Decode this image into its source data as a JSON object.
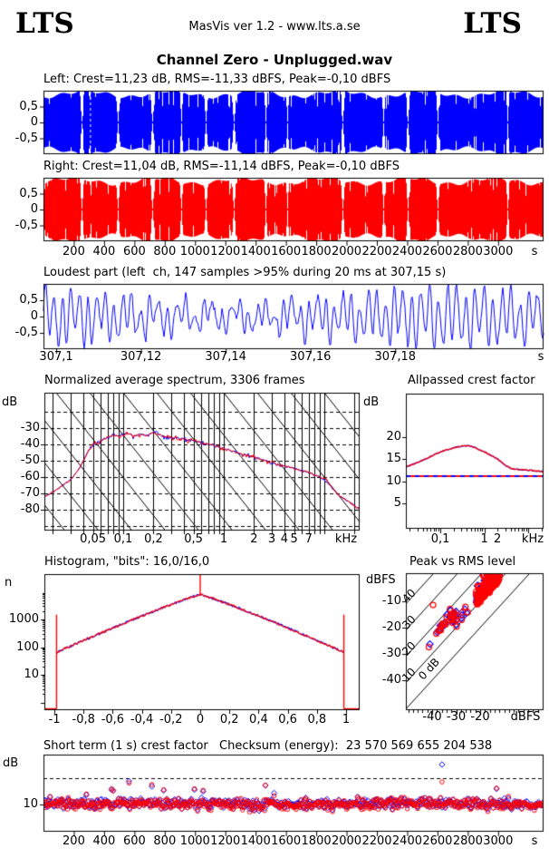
{
  "header": {
    "logo_left": "LTS",
    "logo_right": "LTS",
    "center_text": "MasVis ver 1.2 - www.lts.a.se"
  },
  "title": "Channel Zero - Unplugged.wav",
  "colors": {
    "left_channel": "#0000ff",
    "right_channel": "#ff0000",
    "axis": "#000000",
    "background": "#ffffff"
  },
  "panels": {
    "wave_left": {
      "title": "Left: Crest=11,23 dB, RMS=-11,33 dBFS, Peak=-0,10 dBFS",
      "yticks": [
        0.5,
        0,
        -0.5
      ],
      "ytick_labels": [
        "0,5",
        "0",
        "-0,5"
      ]
    },
    "wave_right": {
      "title": "Right: Crest=11,04 dB, RMS=-11,14 dBFS, Peak=-0,10 dBFS",
      "yticks": [
        0.5,
        0,
        -0.5
      ],
      "ytick_labels": [
        "0,5",
        "0",
        "-0,5"
      ]
    },
    "time_axis": {
      "ticks": [
        200,
        400,
        600,
        800,
        1000,
        1200,
        1400,
        1600,
        1800,
        2000,
        2200,
        2400,
        2600,
        2800,
        3000
      ],
      "tick_labels": [
        "200",
        "400",
        "600",
        "800",
        "1000",
        "1200",
        "1400",
        "1600",
        "1800",
        "2000",
        "2200",
        "2400",
        "2600",
        "2800",
        "3000"
      ],
      "unit": "s"
    },
    "loudest": {
      "title": "Loudest part (left  ch, 147 samples >95% during 20 ms at 307,15 s)",
      "xticks": [
        307.1,
        307.12,
        307.14,
        307.16,
        307.18
      ],
      "xtick_labels": [
        "307,1",
        "307,12",
        "307,14",
        "307,16",
        "307,18"
      ],
      "unit": "s",
      "yticks": [
        0.5,
        0,
        -0.5
      ],
      "ytick_labels": [
        "0,5",
        "0",
        "-0,5"
      ]
    },
    "spectrum": {
      "title": "Normalized average spectrum, 3306 frames",
      "ylabel": "dB",
      "yticks": [
        -30,
        -40,
        -50,
        -60,
        -70,
        -80
      ],
      "ytick_labels": [
        "-30",
        "-40",
        "-50",
        "-60",
        "-70",
        "-80"
      ],
      "xticks": [
        0.05,
        0.1,
        0.2,
        0.5,
        1,
        2,
        3,
        4,
        5,
        7
      ],
      "xtick_labels": [
        "0,05",
        "0,1",
        "0,2",
        "0,5",
        "1",
        "2",
        "3",
        "4",
        "5",
        "7"
      ],
      "unit": "kHz"
    },
    "allpassed": {
      "title": "Allpassed crest factor",
      "ylabel": "dB",
      "yticks": [
        20,
        15,
        10,
        5
      ],
      "ytick_labels": [
        "20",
        "15",
        "10",
        "5"
      ],
      "xticks": [
        0.1,
        1,
        2
      ],
      "xtick_labels": [
        "0,1",
        "1",
        "2"
      ],
      "unit": "kHz"
    },
    "histogram": {
      "title": "Histogram, \"bits\": 16,0/16,0",
      "ylabel": "n",
      "yticks": [
        1000,
        100,
        10
      ],
      "ytick_labels": [
        "1000",
        "100",
        "10"
      ],
      "xticks": [
        -1,
        -0.8,
        -0.6,
        -0.4,
        -0.2,
        0,
        0.2,
        0.4,
        0.6,
        0.8,
        1
      ],
      "xtick_labels": [
        "-1",
        "-0,8",
        "-0,6",
        "-0,4",
        "-0,2",
        "0",
        "0,2",
        "0,4",
        "0,6",
        "0,8",
        "1"
      ]
    },
    "peak_rms": {
      "title": "Peak vs RMS level",
      "ylabel": "dBFS",
      "yticks": [
        -10,
        -20,
        -30,
        -40
      ],
      "ytick_labels": [
        "-10",
        "-20",
        "-30",
        "-40"
      ],
      "xticks": [
        -40,
        -30,
        -20
      ],
      "xtick_labels": [
        "-40",
        "-30",
        "-20"
      ],
      "unit": "dBFS",
      "diag_crests": [
        40,
        30,
        20,
        10,
        0
      ],
      "diag_labels": [
        "40",
        "30",
        "20",
        "10",
        "0 dB"
      ]
    },
    "short_term": {
      "title": "Short term (1 s) crest factor",
      "checksum": "Checksum (energy):  23 570 569 655 204 538",
      "ylabel": "dB",
      "yticks": [
        10
      ],
      "ytick_labels": [
        "10"
      ]
    }
  },
  "chart_data": [
    {
      "id": "wave_left",
      "type": "area",
      "channel": "left",
      "color": "#0000ff",
      "xlim": [
        0,
        3300
      ],
      "ylim": [
        -1,
        1
      ],
      "xunit": "s",
      "crest_db": 11.23,
      "rms_dbfs": -11.33,
      "peak_dbfs": -0.1,
      "loudest_marker_s": 307.15,
      "quiet_sections_s": [
        251,
        490,
        717,
        908,
        1070,
        1255,
        1465,
        1608,
        1973,
        2242,
        2403,
        2600,
        3061
      ],
      "seed": 11
    },
    {
      "id": "wave_right",
      "type": "area",
      "channel": "right",
      "color": "#ff0000",
      "xlim": [
        0,
        3300
      ],
      "ylim": [
        -1,
        1
      ],
      "xunit": "s",
      "crest_db": 11.04,
      "rms_dbfs": -11.14,
      "peak_dbfs": -0.1,
      "quiet_sections_s": [
        251,
        490,
        717,
        908,
        1070,
        1255,
        1465,
        1608,
        1973,
        2242,
        2403,
        2600,
        3061
      ],
      "seed": 12
    },
    {
      "id": "loudest",
      "type": "line",
      "color": "#0000ff",
      "xlim": [
        307.097,
        307.215
      ],
      "ylim": [
        -1,
        1
      ],
      "xunit": "s",
      "samples": 147,
      "window_ms": 20,
      "at_s": 307.15,
      "seed": 21
    },
    {
      "id": "spectrum",
      "type": "line",
      "xscale": "log",
      "frames": 3306,
      "xlim_khz": [
        0.0164,
        22.4
      ],
      "ylim_db": [
        -92.7,
        -8.2
      ],
      "grid": "log-vertical, 10dB dashed horizontal, tilted diagonals every 1/3 decade",
      "series": [
        {
          "name": "left",
          "color": "#ff0000"
        },
        {
          "name": "right",
          "color": "#0000ff"
        }
      ],
      "points_khz_db": [
        [
          0.0164,
          -72
        ],
        [
          0.02,
          -69
        ],
        [
          0.025,
          -65
        ],
        [
          0.03,
          -61.5
        ],
        [
          0.035,
          -56.5
        ],
        [
          0.04,
          -50
        ],
        [
          0.045,
          -44
        ],
        [
          0.05,
          -40.5
        ],
        [
          0.055,
          -38.5
        ],
        [
          0.06,
          -37.5
        ],
        [
          0.07,
          -35.5
        ],
        [
          0.08,
          -34
        ],
        [
          0.09,
          -35
        ],
        [
          0.1,
          -34
        ],
        [
          0.11,
          -33
        ],
        [
          0.13,
          -34.5
        ],
        [
          0.15,
          -33.5
        ],
        [
          0.17,
          -34.5
        ],
        [
          0.2,
          -32.5
        ],
        [
          0.23,
          -34
        ],
        [
          0.26,
          -35
        ],
        [
          0.3,
          -35.5
        ],
        [
          0.35,
          -36.5
        ],
        [
          0.4,
          -36.5
        ],
        [
          0.45,
          -37
        ],
        [
          0.5,
          -37.5
        ],
        [
          0.6,
          -38.5
        ],
        [
          0.7,
          -39.5
        ],
        [
          0.85,
          -41
        ],
        [
          1,
          -42.5
        ],
        [
          1.2,
          -44
        ],
        [
          1.5,
          -45.5
        ],
        [
          1.8,
          -47
        ],
        [
          2.2,
          -48.5
        ],
        [
          2.7,
          -50
        ],
        [
          3.3,
          -51.5
        ],
        [
          4,
          -53
        ],
        [
          5,
          -54.5
        ],
        [
          6,
          -56
        ],
        [
          7,
          -57
        ],
        [
          8,
          -58.5
        ],
        [
          9,
          -60
        ],
        [
          10,
          -61.5
        ],
        [
          11,
          -64
        ],
        [
          12,
          -66.5
        ],
        [
          13,
          -69
        ],
        [
          14,
          -71
        ],
        [
          16,
          -73.5
        ],
        [
          19,
          -76.5
        ],
        [
          22.4,
          -79.5
        ]
      ],
      "seed": 31
    },
    {
      "id": "allpassed",
      "type": "line",
      "xscale": "log",
      "xlim_khz": [
        0.0164,
        22.4
      ],
      "ylim_db": [
        -0.7,
        29.7
      ],
      "dashed_reference_db": 11.15,
      "series": [
        {
          "name": "left",
          "color": "#ff0000"
        },
        {
          "name": "right",
          "color": "#0000ff"
        }
      ],
      "points_khz_db": [
        [
          0.0164,
          13.2
        ],
        [
          0.03,
          14.2
        ],
        [
          0.05,
          15.2
        ],
        [
          0.08,
          16.2
        ],
        [
          0.12,
          16.9
        ],
        [
          0.2,
          17.5
        ],
        [
          0.3,
          17.9
        ],
        [
          0.45,
          18.0
        ],
        [
          0.6,
          17.6
        ],
        [
          0.8,
          17.0
        ],
        [
          1,
          16.6
        ],
        [
          1.5,
          15.7
        ],
        [
          2,
          15.0
        ],
        [
          3,
          13.6
        ],
        [
          4,
          12.9
        ],
        [
          5,
          12.7
        ],
        [
          7,
          12.6
        ],
        [
          10,
          12.5
        ],
        [
          15,
          12.3
        ],
        [
          22.4,
          12.2
        ]
      ],
      "seed": 41
    },
    {
      "id": "histogram",
      "type": "line",
      "yscale": "log",
      "xlim": [
        -1.07,
        1.09
      ],
      "ylim": [
        0.5,
        43000
      ],
      "peak_n": 8000,
      "edge_n": 60,
      "decay_coef": 4.89,
      "decay_exp": 1.1,
      "spikes": [
        {
          "x": -0.985,
          "n": 1500
        },
        {
          "x": 0,
          "n": 43000
        },
        {
          "x": 0.985,
          "n": 1500
        }
      ],
      "series": [
        {
          "name": "left",
          "color": "#ff0000"
        },
        {
          "name": "right",
          "color": "#0000ff"
        }
      ],
      "seed": 51
    },
    {
      "id": "peak_rms",
      "type": "scatter",
      "xlim_dbfs": [
        -50.9,
        6.4
      ],
      "ylim_dbfs": [
        -51.4,
        0.7
      ],
      "n_points": 520,
      "typical_crest_db": [
        10,
        16
      ],
      "peak_clip_dbfs": -0.1,
      "outlier": {
        "rms": -39.6,
        "peak": -11.4
      },
      "series": [
        {
          "name": "left",
          "marker": "circle",
          "color": "#ff0000"
        },
        {
          "name": "right",
          "marker": "diamond",
          "color": "#0000ff"
        }
      ],
      "seed": 61
    },
    {
      "id": "short_term",
      "type": "scatter",
      "xlim_s": [
        0,
        3300
      ],
      "ylim_db": [
        -0.3,
        29
      ],
      "n_points": 634,
      "mean_db": 10.4,
      "dashed_reference_db": 20,
      "outliers": [
        {
          "t_s": 2630,
          "db": 25.2,
          "channel": "right"
        },
        {
          "t_s": 2630,
          "db": 18.6,
          "channel": "left"
        }
      ],
      "series": [
        {
          "name": "left",
          "marker": "circle",
          "color": "#ff0000"
        },
        {
          "name": "right",
          "marker": "diamond",
          "color": "#0000ff"
        }
      ],
      "seed": 71
    }
  ]
}
